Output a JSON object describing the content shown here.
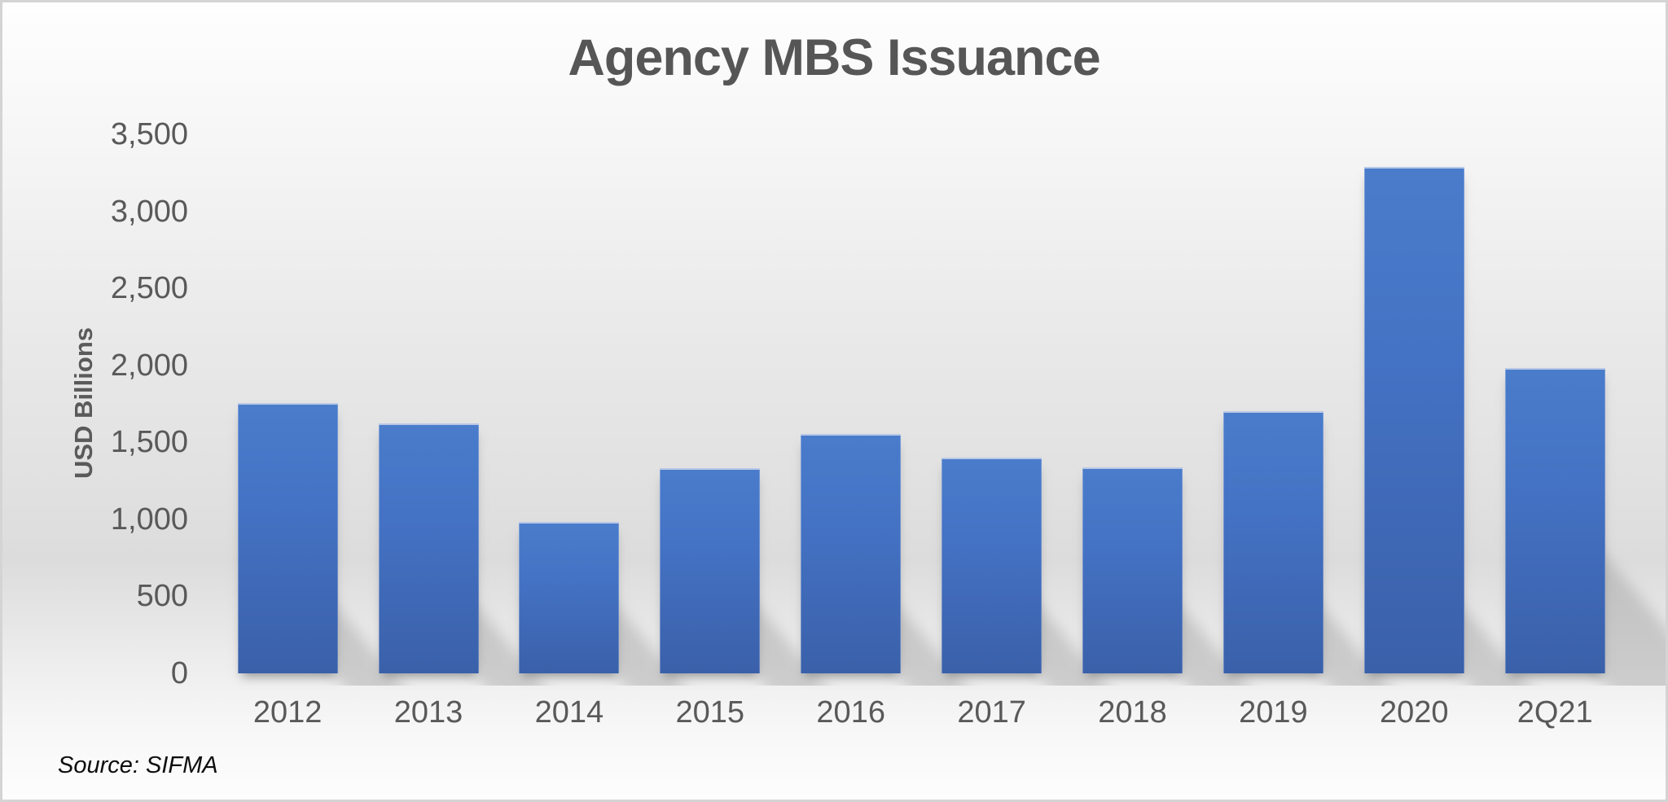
{
  "chart": {
    "title": "Agency MBS Issuance",
    "ylabel": "USD Billions",
    "source": "Source: SIFMA"
  },
  "chart_data": {
    "type": "bar",
    "title": "Agency MBS Issuance",
    "ylabel": "USD Billions",
    "xlabel": "",
    "source": "Source: SIFMA",
    "categories": [
      "2012",
      "2013",
      "2014",
      "2015",
      "2016",
      "2017",
      "2018",
      "2019",
      "2020",
      "2Q21"
    ],
    "values": [
      1755,
      1625,
      985,
      1330,
      1555,
      1400,
      1335,
      1705,
      3290,
      1980
    ],
    "unit": "USD Billions",
    "ylim": [
      0,
      3500
    ],
    "ytick_step": 500,
    "ytick_labels": [
      "0",
      "500",
      "1,000",
      "1,500",
      "2,000",
      "2,500",
      "3,000",
      "3,500"
    ],
    "grid": false,
    "legend": false,
    "bar_color": "#4472c4",
    "background": "gray-gradient",
    "bar_effect": "perspective-shadow-lower-right"
  }
}
